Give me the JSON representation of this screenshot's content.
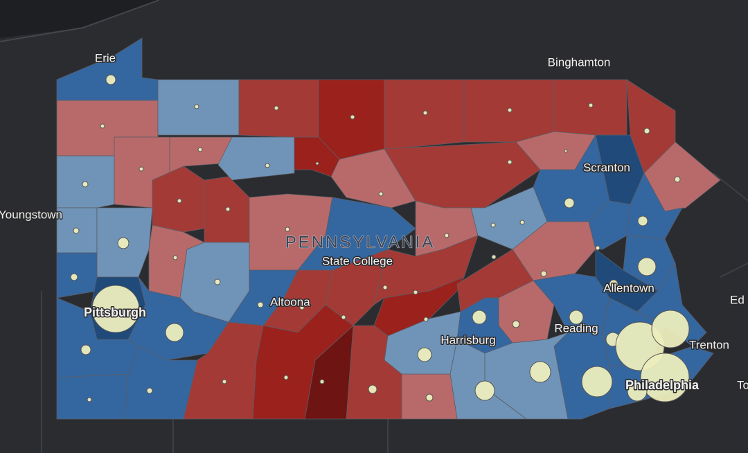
{
  "map": {
    "title": "PENNSYLVANIA",
    "places": [
      {
        "label": "Erie"
      },
      {
        "label": "Binghamton"
      },
      {
        "label": "Scranton"
      },
      {
        "label": "Youngstown"
      },
      {
        "label": "State College"
      },
      {
        "label": "Altoona"
      },
      {
        "label": "Pittsburgh"
      },
      {
        "label": "Allentown"
      },
      {
        "label": "Ed"
      },
      {
        "label": "Reading"
      },
      {
        "label": "Harrisburg"
      },
      {
        "label": "Trenton"
      },
      {
        "label": "Philadelphia"
      },
      {
        "label": "To"
      }
    ]
  }
}
